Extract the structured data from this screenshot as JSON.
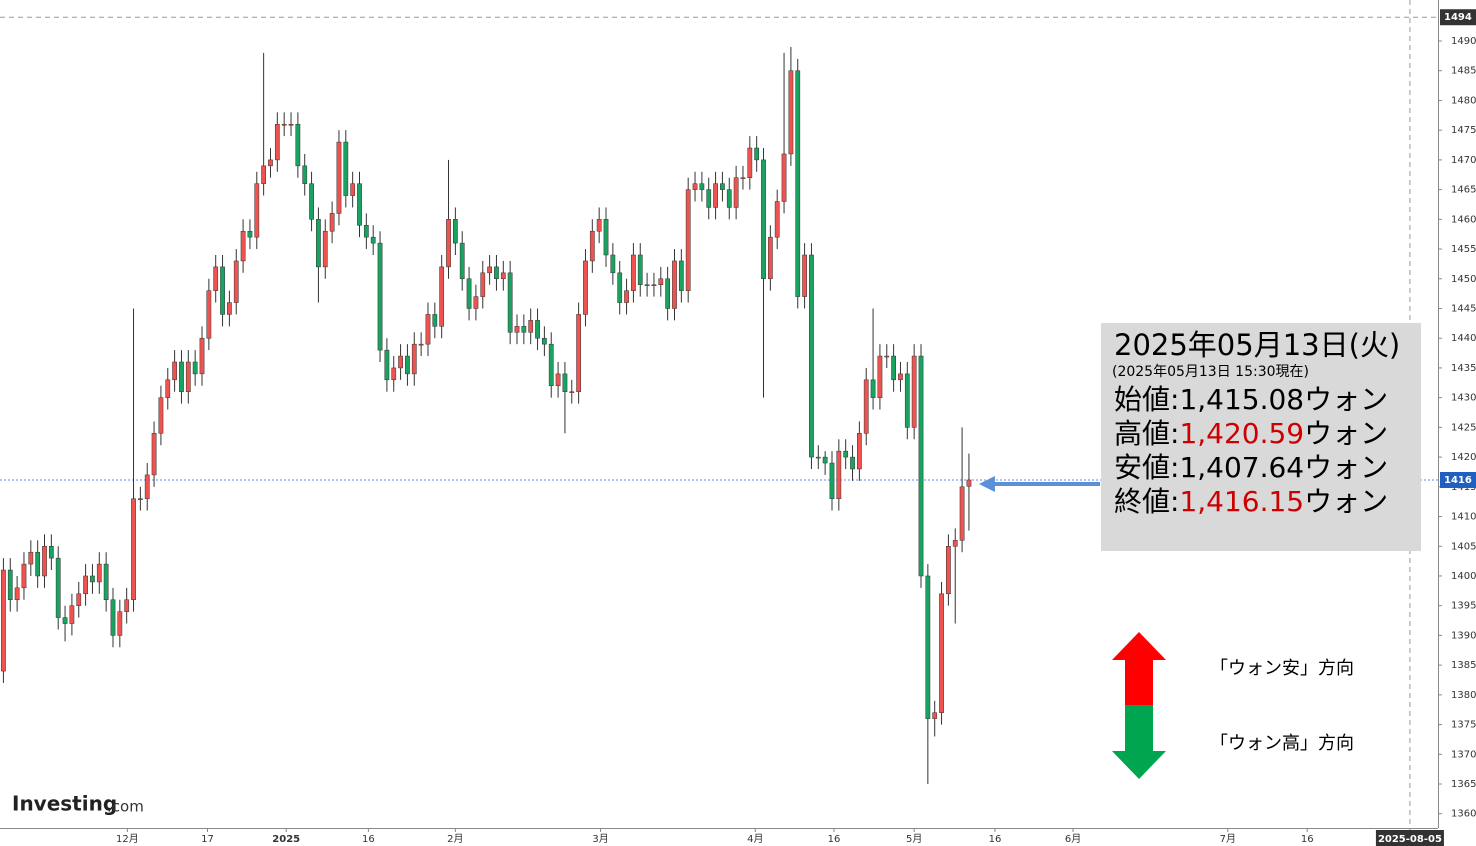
{
  "chart_data": {
    "type": "candlestick",
    "up_color": "#ef5350",
    "down_color": "#1aa260",
    "open": [
      1384,
      1401,
      1396,
      1398,
      1402,
      1404,
      1400,
      1405,
      1403,
      1393,
      1392,
      1395,
      1397,
      1400,
      1399,
      1402,
      1396,
      1390,
      1394,
      1396,
      1413,
      1413,
      1417,
      1424,
      1430,
      1433,
      1436,
      1431,
      1436,
      1434,
      1440,
      1448,
      1452,
      1444,
      1446,
      1453,
      1458,
      1457,
      1466,
      1469,
      1470,
      1476,
      1476,
      1476,
      1469,
      1466,
      1460,
      1452,
      1458,
      1461,
      1473,
      1464,
      1466,
      1459,
      1457,
      1456,
      1438,
      1433,
      1435,
      1437,
      1434,
      1439,
      1439,
      1444,
      1442,
      1452,
      1460,
      1456,
      1450,
      1445,
      1447,
      1451,
      1452,
      1450,
      1451,
      1441,
      1442,
      1441,
      1443,
      1440,
      1439,
      1432,
      1434,
      1431,
      1431,
      1444,
      1453,
      1458,
      1460,
      1454,
      1451,
      1446,
      1448,
      1454,
      1449,
      1449,
      1449,
      1450,
      1445,
      1453,
      1448,
      1465,
      1466,
      1465,
      1462,
      1466,
      1465,
      1462,
      1467,
      1467,
      1472,
      1470,
      1450,
      1457,
      1463,
      1471,
      1485,
      1447,
      1454,
      1420,
      1420,
      1419,
      1413,
      1421,
      1420,
      1418,
      1424,
      1433,
      1430,
      1437,
      1437,
      1433,
      1434,
      1425,
      1437,
      1400,
      1376,
      1377,
      1397,
      1405,
      1406,
      1415.08
    ],
    "high": [
      1403,
      1403,
      1400,
      1404,
      1406,
      1406,
      1407,
      1407,
      1405,
      1395,
      1397,
      1399,
      1402,
      1402,
      1404,
      1404,
      1398,
      1396,
      1398,
      1445,
      1415,
      1419,
      1426,
      1432,
      1435,
      1438,
      1438,
      1438,
      1438,
      1442,
      1450,
      1454,
      1454,
      1448,
      1455,
      1460,
      1460,
      1468,
      1488,
      1472,
      1478,
      1478,
      1478,
      1478,
      1471,
      1468,
      1462,
      1460,
      1463,
      1475,
      1475,
      1468,
      1468,
      1461,
      1459,
      1458,
      1440,
      1437,
      1439,
      1439,
      1441,
      1441,
      1446,
      1446,
      1454,
      1470,
      1462,
      1458,
      1452,
      1449,
      1453,
      1454,
      1454,
      1453,
      1453,
      1444,
      1444,
      1445,
      1445,
      1442,
      1441,
      1436,
      1436,
      1433,
      1446,
      1455,
      1460,
      1462,
      1462,
      1456,
      1453,
      1450,
      1456,
      1456,
      1451,
      1451,
      1452,
      1452,
      1455,
      1455,
      1467,
      1468,
      1468,
      1467,
      1468,
      1468,
      1467,
      1469,
      1469,
      1474,
      1474,
      1472,
      1459,
      1465,
      1488,
      1489,
      1487,
      1456,
      1456,
      1422,
      1421,
      1421,
      1423,
      1423,
      1422,
      1426,
      1435,
      1445,
      1439,
      1439,
      1439,
      1436,
      1436,
      1439,
      1439,
      1402,
      1379,
      1399,
      1407,
      1408,
      1425,
      1420.59
    ],
    "low": [
      1382,
      1394,
      1394,
      1396,
      1400,
      1398,
      1398,
      1401,
      1391,
      1389,
      1390,
      1393,
      1395,
      1397,
      1397,
      1394,
      1388,
      1388,
      1392,
      1394,
      1411,
      1411,
      1415,
      1422,
      1428,
      1431,
      1429,
      1429,
      1432,
      1432,
      1438,
      1446,
      1442,
      1442,
      1444,
      1451,
      1455,
      1455,
      1464,
      1467,
      1468,
      1474,
      1474,
      1467,
      1464,
      1458,
      1446,
      1450,
      1456,
      1459,
      1462,
      1462,
      1457,
      1455,
      1454,
      1436,
      1431,
      1431,
      1433,
      1432,
      1432,
      1437,
      1437,
      1440,
      1440,
      1450,
      1454,
      1448,
      1443,
      1443,
      1445,
      1449,
      1448,
      1448,
      1439,
      1439,
      1439,
      1439,
      1438,
      1437,
      1430,
      1430,
      1424,
      1429,
      1429,
      1442,
      1451,
      1456,
      1452,
      1449,
      1444,
      1444,
      1446,
      1447,
      1447,
      1447,
      1447,
      1443,
      1443,
      1446,
      1446,
      1463,
      1463,
      1460,
      1460,
      1463,
      1460,
      1460,
      1465,
      1465,
      1468,
      1430,
      1448,
      1455,
      1461,
      1469,
      1445,
      1445,
      1418,
      1418,
      1417,
      1411,
      1411,
      1418,
      1416,
      1416,
      1422,
      1428,
      1428,
      1435,
      1431,
      1431,
      1423,
      1423,
      1398,
      1365,
      1373,
      1375,
      1395,
      1392,
      1404,
      1407.64
    ],
    "close": [
      1401,
      1396,
      1398,
      1402,
      1404,
      1400,
      1405,
      1403,
      1393,
      1392,
      1395,
      1397,
      1400,
      1399,
      1402,
      1396,
      1390,
      1394,
      1396,
      1413,
      1413,
      1417,
      1424,
      1430,
      1433,
      1436,
      1431,
      1436,
      1434,
      1440,
      1448,
      1452,
      1444,
      1446,
      1453,
      1458,
      1457,
      1466,
      1469,
      1470,
      1476,
      1476,
      1476,
      1469,
      1466,
      1460,
      1452,
      1458,
      1461,
      1473,
      1464,
      1466,
      1459,
      1457,
      1456,
      1438,
      1433,
      1435,
      1437,
      1434,
      1439,
      1439,
      1444,
      1442,
      1452,
      1460,
      1456,
      1450,
      1445,
      1447,
      1451,
      1452,
      1450,
      1451,
      1441,
      1442,
      1441,
      1443,
      1440,
      1439,
      1432,
      1434,
      1431,
      1431,
      1444,
      1453,
      1458,
      1460,
      1454,
      1451,
      1446,
      1448,
      1454,
      1449,
      1449,
      1449,
      1450,
      1445,
      1453,
      1448,
      1465,
      1466,
      1465,
      1462,
      1466,
      1465,
      1462,
      1467,
      1467,
      1472,
      1470,
      1450,
      1457,
      1463,
      1471,
      1485,
      1447,
      1454,
      1420,
      1420,
      1419,
      1413,
      1421,
      1420,
      1418,
      1424,
      1433,
      1430,
      1437,
      1437,
      1433,
      1434,
      1425,
      1437,
      1400,
      1376,
      1377,
      1397,
      1405,
      1406,
      1415,
      1416.15
    ],
    "xlim": [
      -0.5,
      209.5
    ],
    "xticks": [
      {
        "value": 18.1,
        "label": "12月"
      },
      {
        "value": 29.8,
        "label": "17"
      },
      {
        "value": 41.3,
        "label": "2025"
      },
      {
        "value": 53.3,
        "label": "16"
      },
      {
        "value": 66.0,
        "label": "2月"
      },
      {
        "value": 87.2,
        "label": "3月"
      },
      {
        "value": 109.8,
        "label": "4月"
      },
      {
        "value": 121.3,
        "label": "16"
      },
      {
        "value": 133.0,
        "label": "5月"
      },
      {
        "value": 144.8,
        "label": "16"
      },
      {
        "value": 156.2,
        "label": "6月"
      },
      {
        "value": 178.8,
        "label": "7月"
      },
      {
        "value": 190.4,
        "label": "16"
      },
      {
        "value": 205.4,
        "label": "2025-08-05"
      }
    ],
    "ylim": [
      1357.6,
      1496.9
    ],
    "yticks": [
      1360,
      1365,
      1370,
      1375,
      1380,
      1385,
      1390,
      1395,
      1400,
      1405,
      1410,
      1415,
      1420,
      1425,
      1430,
      1435,
      1440,
      1445,
      1450,
      1455,
      1460,
      1465,
      1470,
      1475,
      1480,
      1485,
      1490
    ],
    "top_marker": 1494,
    "price_marker": {
      "value": 1416.15,
      "label": "1416"
    },
    "info_box": {
      "title": "2025年05月13日(火)",
      "subtitle": "(2025年05月13日 15:30現在)",
      "rows": [
        {
          "label": "始値:",
          "value": "1,415.08",
          "unit": "ウォン",
          "color": "#000000"
        },
        {
          "label": "高値:",
          "value": "1,420.59",
          "unit": "ウォン",
          "color": "#cc0000"
        },
        {
          "label": "安値:",
          "value": "1,407.64",
          "unit": "ウォン",
          "color": "#000000"
        },
        {
          "label": "終値:",
          "value": "1,416.15",
          "unit": "ウォン",
          "color": "#cc0000"
        }
      ]
    },
    "direction_legend": [
      {
        "label": "「ウォン安」方向",
        "color": "#ff0000"
      },
      {
        "label": "「ウォン高」方向",
        "color": "#00a550"
      }
    ],
    "logo": {
      "name": "Investing",
      "suffix": ".com"
    }
  }
}
